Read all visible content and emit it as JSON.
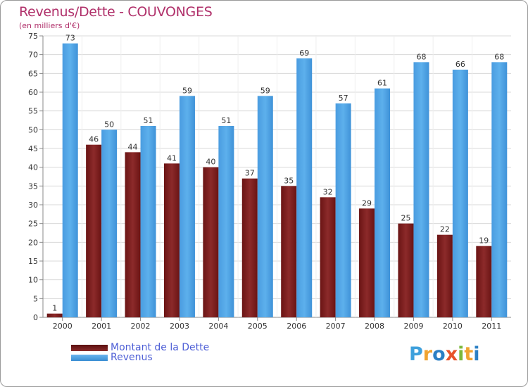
{
  "chart_data": {
    "type": "bar",
    "title": "Revenus/Dette - COUVONGES",
    "subtitle": "(en milliers d'€)",
    "xlabel": "",
    "ylabel": "",
    "ylim": [
      0,
      75
    ],
    "yticks": [
      0,
      5,
      10,
      15,
      20,
      25,
      30,
      35,
      40,
      45,
      50,
      55,
      60,
      65,
      70,
      75
    ],
    "grid": true,
    "legend_position": "bottom-left",
    "categories": [
      "2000",
      "2001",
      "2002",
      "2003",
      "2004",
      "2005",
      "2006",
      "2007",
      "2008",
      "2009",
      "2010",
      "2011"
    ],
    "series": [
      {
        "name": "Montant de la Dette",
        "color": "#7a1f1f",
        "values": [
          1,
          46,
          44,
          41,
          40,
          37,
          35,
          32,
          29,
          25,
          22,
          19
        ]
      },
      {
        "name": "Revenus",
        "color": "#4d9fe0",
        "values": [
          73,
          50,
          51,
          59,
          51,
          59,
          69,
          57,
          61,
          68,
          66,
          68
        ]
      }
    ]
  },
  "logo": {
    "text": "Proxiti",
    "letters": [
      "P",
      "r",
      "o",
      "x",
      "i",
      "t",
      "i"
    ],
    "colors": [
      "#3ea0dc",
      "#f0a330",
      "#2b7fc4",
      "#e8522a",
      "#7ab83a",
      "#f0a330",
      "#2b7fc4"
    ]
  }
}
